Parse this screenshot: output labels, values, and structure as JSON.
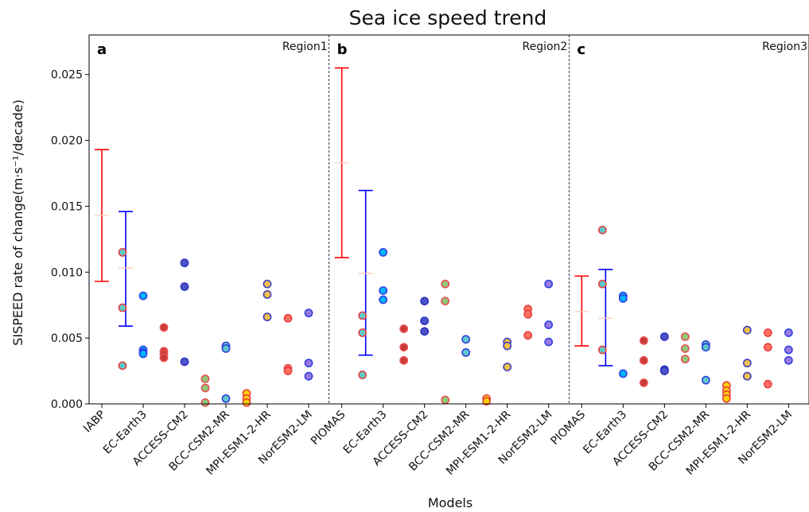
{
  "chart_data": {
    "type": "scatter",
    "title": "Sea ice speed trend",
    "xlabel": "Models",
    "ylabel": "SISPEED rate of change",
    "ylabel_unit": "(m·s⁻¹/decade)",
    "ylim": [
      0,
      0.028
    ],
    "yticks": [
      "0.000",
      "0.005",
      "0.010",
      "0.015",
      "0.020",
      "0.025"
    ],
    "grid": false,
    "colors": {
      "ref_errorbar": "#ff0000",
      "ens_errorbar": "#0000ff",
      "errorbar_mid": "#ffc8b4"
    },
    "panels": [
      {
        "letter": "a",
        "region": "Region1",
        "categories": [
          "IABP",
          "EC-Earth3",
          "ACCESS-CM2",
          "BCC-CSM2-MR",
          "MPI-ESM1-2-HR",
          "NorESM2-LM"
        ],
        "reference": {
          "low": 0.0093,
          "mid": 0.0143,
          "high": 0.0193
        },
        "ensemble": {
          "low": 0.0059,
          "mid": 0.0103,
          "high": 0.0146
        },
        "points": [
          {
            "slot": 1.5,
            "y": [
              0.0115,
              0.0073,
              0.0029
            ],
            "fill": "#5fc8c8",
            "edge": "#e84040"
          },
          {
            "slot": 2,
            "y": [
              0.0082,
              0.0041,
              0.0039,
              0.0038
            ],
            "fill": "#00b4ff",
            "edge": "#3040e0"
          },
          {
            "slot": 2.5,
            "y": [
              0.0058,
              0.004,
              0.0038,
              0.0035
            ],
            "fill": "#c83c3c",
            "edge": "#e85050"
          },
          {
            "slot": 3,
            "y": [
              0.0107,
              0.0089,
              0.0032
            ],
            "fill": "#4c54c8",
            "edge": "#3030c0"
          },
          {
            "slot": 3.5,
            "y": [
              0.0019,
              0.0012,
              0.0001
            ],
            "fill": "#90c878",
            "edge": "#e85050"
          },
          {
            "slot": 4,
            "y": [
              0.0044,
              0.0042,
              0.0004
            ],
            "fill": "#5fc8c8",
            "edge": "#3040e0"
          },
          {
            "slot": 4.5,
            "y": [
              0.0008,
              0.0004,
              0.0001
            ],
            "fill": "#ffd200",
            "edge": "#e84040"
          },
          {
            "slot": 5,
            "y": [
              0.0091,
              0.0083,
              0.0066
            ],
            "fill": "#f0c048",
            "edge": "#4040c0"
          },
          {
            "slot": 5.5,
            "y": [
              0.0065,
              0.0027,
              0.0025
            ],
            "fill": "#ff7060",
            "edge": "#e84040"
          },
          {
            "slot": 6,
            "y": [
              0.0069,
              0.0031,
              0.0021
            ],
            "fill": "#9a7ae0",
            "edge": "#3040e0"
          }
        ]
      },
      {
        "letter": "b",
        "region": "Region2",
        "categories": [
          "PIOMAS",
          "EC-Earth3",
          "ACCESS-CM2",
          "BCC-CSM2-MR",
          "MPI-ESM1-2-HR",
          "NorESM2-LM"
        ],
        "reference": {
          "low": 0.0111,
          "mid": 0.0183,
          "high": 0.0255
        },
        "ensemble": {
          "low": 0.0037,
          "mid": 0.0099,
          "high": 0.0162
        },
        "points": [
          {
            "slot": 1.5,
            "y": [
              0.0067,
              0.0054,
              0.0022
            ],
            "fill": "#5fc8c8",
            "edge": "#e84040"
          },
          {
            "slot": 2,
            "y": [
              0.0115,
              0.0086,
              0.0079
            ],
            "fill": "#00b4ff",
            "edge": "#3040e0"
          },
          {
            "slot": 2.5,
            "y": [
              0.0057,
              0.0043,
              0.0033
            ],
            "fill": "#c83c3c",
            "edge": "#e85050"
          },
          {
            "slot": 3,
            "y": [
              0.0078,
              0.0063,
              0.0055
            ],
            "fill": "#4c54c8",
            "edge": "#3030c0"
          },
          {
            "slot": 3.5,
            "y": [
              0.0091,
              0.0078,
              0.0003
            ],
            "fill": "#90c878",
            "edge": "#e85050"
          },
          {
            "slot": 4,
            "y": [
              0.0049,
              0.0039
            ],
            "fill": "#5fc8c8",
            "edge": "#3040e0"
          },
          {
            "slot": 4.5,
            "y": [
              0.0004,
              0.0002
            ],
            "fill": "#ffd200",
            "edge": "#e84040"
          },
          {
            "slot": 5,
            "y": [
              0.0047,
              0.0044,
              0.0028
            ],
            "fill": "#f0c048",
            "edge": "#4040c0"
          },
          {
            "slot": 5.5,
            "y": [
              0.0072,
              0.0068,
              0.0052
            ],
            "fill": "#ff7060",
            "edge": "#e84040"
          },
          {
            "slot": 6,
            "y": [
              0.0091,
              0.006,
              0.0047
            ],
            "fill": "#9a7ae0",
            "edge": "#3040e0"
          }
        ]
      },
      {
        "letter": "c",
        "region": "Region3",
        "categories": [
          "PIOMAS",
          "EC-Earth3",
          "ACCESS-CM2",
          "BCC-CSM2-MR",
          "MPI-ESM1-2-HR",
          "NorESM2-LM"
        ],
        "reference": {
          "low": 0.0044,
          "mid": 0.007,
          "high": 0.0097
        },
        "ensemble": {
          "low": 0.0029,
          "mid": 0.0065,
          "high": 0.0102
        },
        "points": [
          {
            "slot": 1.5,
            "y": [
              0.0132,
              0.0091,
              0.0041
            ],
            "fill": "#5fc8c8",
            "edge": "#e84040"
          },
          {
            "slot": 2,
            "y": [
              0.0082,
              0.008,
              0.0023
            ],
            "fill": "#00b4ff",
            "edge": "#3040e0"
          },
          {
            "slot": 2.5,
            "y": [
              0.0048,
              0.0033,
              0.0016
            ],
            "fill": "#c83c3c",
            "edge": "#e85050"
          },
          {
            "slot": 3,
            "y": [
              0.0051,
              0.0026,
              0.0025
            ],
            "fill": "#4c54c8",
            "edge": "#3030c0"
          },
          {
            "slot": 3.5,
            "y": [
              0.0051,
              0.0042,
              0.0034
            ],
            "fill": "#90c878",
            "edge": "#e85050"
          },
          {
            "slot": 4,
            "y": [
              0.0045,
              0.0043,
              0.0018
            ],
            "fill": "#5fc8c8",
            "edge": "#3040e0"
          },
          {
            "slot": 4.5,
            "y": [
              0.0014,
              0.001,
              0.0007,
              0.0004
            ],
            "fill": "#ffd200",
            "edge": "#e84040"
          },
          {
            "slot": 5,
            "y": [
              0.0056,
              0.0031,
              0.0021
            ],
            "fill": "#f0c048",
            "edge": "#4040c0"
          },
          {
            "slot": 5.5,
            "y": [
              0.0054,
              0.0043,
              0.0015
            ],
            "fill": "#ff7060",
            "edge": "#e84040"
          },
          {
            "slot": 6,
            "y": [
              0.0054,
              0.0041,
              0.0033
            ],
            "fill": "#9a7ae0",
            "edge": "#3040e0"
          }
        ]
      }
    ]
  }
}
